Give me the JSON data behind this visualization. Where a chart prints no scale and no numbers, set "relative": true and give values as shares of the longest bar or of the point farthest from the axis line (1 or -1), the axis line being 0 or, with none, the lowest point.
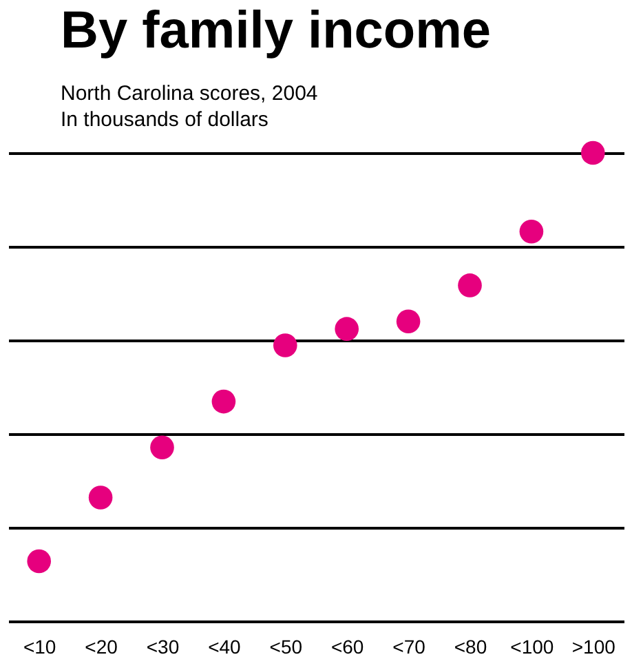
{
  "chart_data": {
    "type": "scatter",
    "title": "By family income",
    "subtitle": "North Carolina scores, 2004",
    "annotations": [
      "In thousands of dollars"
    ],
    "categories": [
      "<10",
      "<20",
      "<30",
      "<40",
      "<50",
      "<60",
      "<70",
      "<80",
      "<100",
      ">100"
    ],
    "series": [
      {
        "color": "#e6007e",
        "values": [
          0.128,
          0.264,
          0.371,
          0.469,
          0.589,
          0.624,
          0.64,
          0.717,
          0.832,
          1
        ]
      }
    ],
    "relative": true,
    "grid": "y",
    "marker": "circle",
    "legend": false
  }
}
